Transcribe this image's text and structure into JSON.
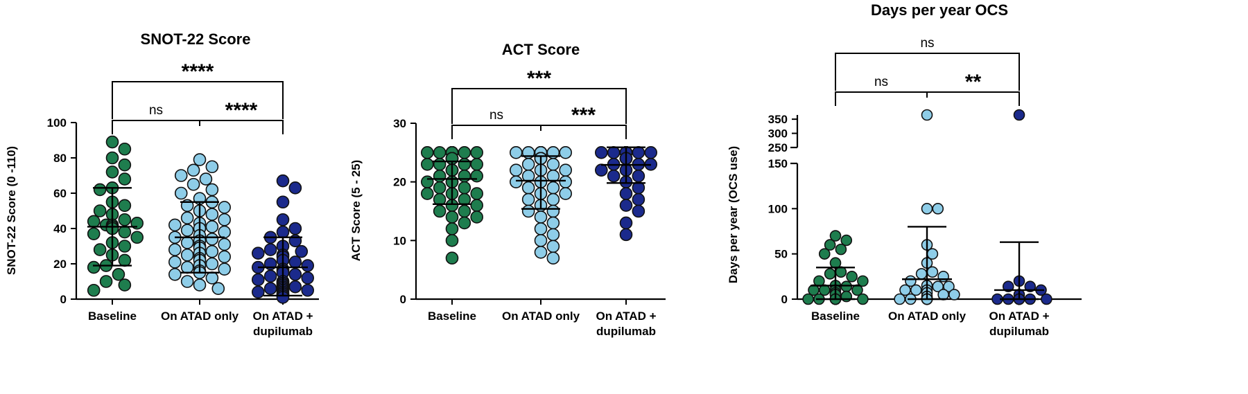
{
  "colors": {
    "baseline": "#1e7d4e",
    "atad_only": "#8ecde8",
    "atad_dupilumab": "#1b2a8c",
    "stroke": "#111111"
  },
  "chart_data": [
    {
      "type": "scatter",
      "title": "SNOT-22 Score",
      "ylabel": "SNOT-22 Score (0 -110)",
      "ylim": [
        0,
        100
      ],
      "yticks": [
        "0",
        "20",
        "40",
        "60",
        "80",
        "100"
      ],
      "categories": [
        [
          "Baseline"
        ],
        [
          "On ATAD only"
        ],
        [
          "On ATAD +",
          "dupilumab"
        ]
      ],
      "groups": [
        {
          "name": "Baseline",
          "color_key": "baseline",
          "mean": 41,
          "sd_low": 19,
          "sd_high": 63,
          "values": [
            89,
            85,
            80,
            76,
            72,
            68,
            63,
            62,
            55,
            53,
            50,
            48,
            45,
            44,
            43,
            42,
            42,
            41,
            41,
            40,
            40,
            38,
            37,
            35,
            32,
            30,
            28,
            25,
            22,
            19,
            18,
            14,
            10,
            8,
            5
          ]
        },
        {
          "name": "On ATAD only",
          "color_key": "atad_only",
          "mean": 35,
          "sd_low": 15,
          "sd_high": 55,
          "values": [
            79,
            75,
            73,
            70,
            68,
            65,
            62,
            60,
            57,
            55,
            53,
            52,
            50,
            48,
            46,
            45,
            43,
            42,
            41,
            40,
            39,
            38,
            36,
            35,
            34,
            33,
            32,
            31,
            30,
            30,
            29,
            28,
            27,
            26,
            25,
            24,
            23,
            22,
            21,
            20,
            19,
            18,
            17,
            16,
            15,
            14,
            12,
            10,
            8,
            6
          ]
        },
        {
          "name": "On ATAD + dupilumab",
          "color_key": "atad_dupilumab",
          "mean": 18,
          "sd_low": 2,
          "sd_high": 35,
          "values": [
            67,
            63,
            55,
            45,
            40,
            38,
            35,
            33,
            30,
            28,
            27,
            26,
            25,
            24,
            22,
            21,
            20,
            19,
            18,
            17,
            16,
            15,
            14,
            13,
            12,
            11,
            10,
            10,
            9,
            9,
            8,
            8,
            7,
            7,
            6,
            6,
            5,
            5,
            5,
            4,
            4,
            3,
            3,
            2,
            2,
            1
          ]
        }
      ],
      "comparisons": [
        {
          "from": 0,
          "to": 1,
          "label": "ns",
          "level": 0
        },
        {
          "from": 1,
          "to": 2,
          "label": "****",
          "level": 0
        },
        {
          "from": 0,
          "to": 2,
          "label": "****",
          "level": 1
        }
      ]
    },
    {
      "type": "scatter",
      "title": "ACT Score",
      "ylabel": "ACT Score (5 - 25)",
      "ylim": [
        0,
        30
      ],
      "yticks": [
        "0",
        "10",
        "20",
        "30"
      ],
      "categories": [
        [
          "Baseline"
        ],
        [
          "On ATAD only"
        ],
        [
          "On ATAD +",
          "dupilumab"
        ]
      ],
      "groups": [
        {
          "name": "Baseline",
          "color_key": "baseline",
          "mean": 20.5,
          "sd_low": 16.2,
          "sd_high": 23.5,
          "values": [
            25,
            25,
            25,
            25,
            25,
            25,
            25,
            25,
            25,
            25,
            24,
            24,
            24,
            24,
            24,
            24,
            23,
            23,
            23,
            23,
            22,
            22,
            22,
            21,
            21,
            21,
            20,
            20,
            20,
            19,
            19,
            18,
            18,
            18,
            17,
            17,
            16,
            16,
            15,
            15,
            14,
            14,
            13,
            12,
            10,
            7
          ]
        },
        {
          "name": "On ATAD only",
          "color_key": "atad_only",
          "mean": 20.2,
          "sd_low": 15.4,
          "sd_high": 24.4,
          "values": [
            25,
            25,
            25,
            25,
            25,
            25,
            25,
            25,
            25,
            24,
            24,
            24,
            24,
            24,
            24,
            23,
            23,
            22,
            22,
            22,
            21,
            21,
            20,
            20,
            20,
            19,
            19,
            18,
            18,
            17,
            17,
            16,
            15,
            15,
            14,
            13,
            12,
            11,
            10,
            9,
            8,
            7
          ]
        },
        {
          "name": "On ATAD + dupilumab",
          "color_key": "atad_dupilumab",
          "mean": 22.9,
          "sd_low": 19.8,
          "sd_high": 25.9,
          "values": [
            25,
            25,
            25,
            25,
            25,
            25,
            25,
            25,
            25,
            25,
            25,
            25,
            24,
            24,
            24,
            24,
            24,
            24,
            23,
            23,
            23,
            22,
            22,
            21,
            21,
            20,
            19,
            18,
            17,
            16,
            15,
            13,
            11
          ]
        }
      ],
      "comparisons": [
        {
          "from": 0,
          "to": 1,
          "label": "ns",
          "level": 0
        },
        {
          "from": 1,
          "to": 2,
          "label": "***",
          "level": 0
        },
        {
          "from": 0,
          "to": 2,
          "label": "***",
          "level": 1
        }
      ]
    },
    {
      "type": "scatter",
      "title": "Days per year OCS",
      "ylabel": "Days per year (OCS use)",
      "axis_break": true,
      "lower_ylim": [
        0,
        150
      ],
      "upper_ylim": [
        250,
        365
      ],
      "yticks_lower": [
        "0",
        "50",
        "100",
        "150"
      ],
      "yticks_upper": [
        "250",
        "300",
        "350"
      ],
      "categories": [
        [
          "Baseline"
        ],
        [
          "On ATAD only"
        ],
        [
          "On ATAD +",
          "dupilumab"
        ]
      ],
      "groups": [
        {
          "name": "Baseline",
          "color_key": "baseline",
          "mean": 15,
          "sd_low": 0,
          "sd_high": 35,
          "values": [
            70,
            65,
            60,
            55,
            50,
            40,
            30,
            28,
            25,
            20,
            20,
            15,
            14,
            10,
            10,
            10,
            10,
            7,
            5,
            5,
            3,
            0,
            0,
            0,
            0,
            0,
            0,
            0,
            0,
            0,
            0,
            0,
            0
          ]
        },
        {
          "name": "On ATAD only",
          "color_key": "atad_only",
          "mean": 22,
          "sd_low": 0,
          "sd_high": 80,
          "values": [
            365,
            100,
            100,
            60,
            50,
            40,
            30,
            28,
            25,
            20,
            15,
            14,
            14,
            10,
            10,
            10,
            7,
            5,
            5,
            3,
            0,
            0,
            0,
            0,
            0,
            0,
            0,
            0,
            0,
            0,
            0,
            0,
            0,
            0,
            0,
            0
          ]
        },
        {
          "name": "On ATAD + dupilumab",
          "color_key": "atad_dupilumab",
          "mean": 10,
          "sd_low": 0,
          "sd_high": 63,
          "values": [
            365,
            20,
            14,
            14,
            10,
            5,
            0,
            0,
            0,
            0,
            0,
            0,
            0,
            0,
            0,
            0,
            0,
            0,
            0,
            0,
            0,
            0,
            0,
            0,
            0,
            0
          ]
        }
      ],
      "comparisons": [
        {
          "from": 0,
          "to": 1,
          "label": "ns",
          "level": 0
        },
        {
          "from": 1,
          "to": 2,
          "label": "**",
          "level": 0
        },
        {
          "from": 0,
          "to": 2,
          "label": "ns",
          "level": 1
        }
      ]
    }
  ]
}
